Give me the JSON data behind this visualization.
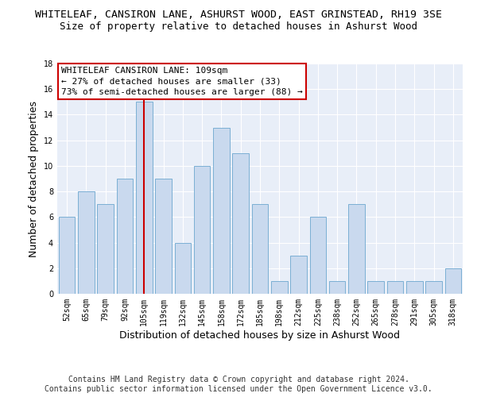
{
  "title": "WHITELEAF, CANSIRON LANE, ASHURST WOOD, EAST GRINSTEAD, RH19 3SE",
  "subtitle": "Size of property relative to detached houses in Ashurst Wood",
  "xlabel": "Distribution of detached houses by size in Ashurst Wood",
  "ylabel": "Number of detached properties",
  "categories": [
    "52sqm",
    "65sqm",
    "79sqm",
    "92sqm",
    "105sqm",
    "119sqm",
    "132sqm",
    "145sqm",
    "158sqm",
    "172sqm",
    "185sqm",
    "198sqm",
    "212sqm",
    "225sqm",
    "238sqm",
    "252sqm",
    "265sqm",
    "278sqm",
    "291sqm",
    "305sqm",
    "318sqm"
  ],
  "values": [
    6,
    8,
    7,
    9,
    15,
    9,
    4,
    10,
    13,
    11,
    7,
    1,
    3,
    6,
    1,
    7,
    1,
    1,
    1,
    1,
    2
  ],
  "bar_color": "#c9d9ee",
  "bar_edge_color": "#7bafd4",
  "highlight_index": 4,
  "highlight_line_color": "#cc0000",
  "ylim": [
    0,
    18
  ],
  "yticks": [
    0,
    2,
    4,
    6,
    8,
    10,
    12,
    14,
    16,
    18
  ],
  "legend_title": "WHITELEAF CANSIRON LANE: 109sqm",
  "legend_line1": "← 27% of detached houses are smaller (33)",
  "legend_line2": "73% of semi-detached houses are larger (88) →",
  "legend_box_color": "#ffffff",
  "legend_box_edge": "#cc0000",
  "footer_line1": "Contains HM Land Registry data © Crown copyright and database right 2024.",
  "footer_line2": "Contains public sector information licensed under the Open Government Licence v3.0.",
  "fig_background_color": "#ffffff",
  "plot_background_color": "#e8eef8",
  "grid_color": "#ffffff",
  "title_fontsize": 9.5,
  "subtitle_fontsize": 9,
  "label_fontsize": 9,
  "tick_fontsize": 7,
  "footer_fontsize": 7,
  "legend_fontsize": 8
}
